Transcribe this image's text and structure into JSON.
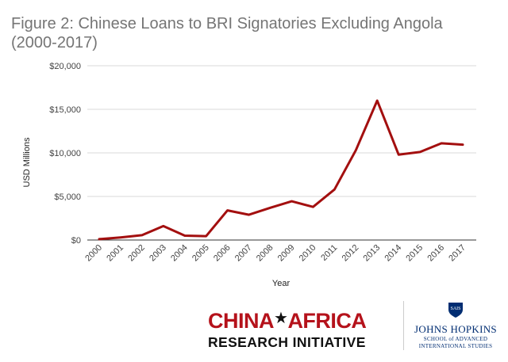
{
  "title": "Figure 2: Chinese Loans to BRI Signatories Excluding Angola (2000-2017)",
  "chart_data": {
    "type": "line",
    "title": "Figure 2: Chinese Loans to BRI Signatories Excluding Angola (2000-2017)",
    "xlabel": "Year",
    "ylabel": "USD Millions",
    "ylim": [
      0,
      20000
    ],
    "yticks": [
      0,
      5000,
      10000,
      15000,
      20000
    ],
    "ytick_labels": [
      "$0",
      "$5,000",
      "$10,000",
      "$15,000",
      "$20,000"
    ],
    "grid": true,
    "x": [
      "2000",
      "2001",
      "2002",
      "2003",
      "2004",
      "2005",
      "2006",
      "2007",
      "2008",
      "2009",
      "2010",
      "2011",
      "2012",
      "2013",
      "2014",
      "2015",
      "2016",
      "2017"
    ],
    "series": [
      {
        "values": [
          100,
          300,
          550,
          1600,
          500,
          450,
          3400,
          2900,
          3700,
          4450,
          3800,
          5800,
          10300,
          16000,
          9800,
          10100,
          11100,
          10950
        ],
        "color": "#a30f0f"
      }
    ]
  },
  "logos": {
    "cari_line1": "CHINA",
    "cari_star": "★",
    "cari_line1b": "AFRICA",
    "cari_line2": "RESEARCH INITIATIVE",
    "jhu_shield": "SAIS",
    "jhu_name": "JOHNS HOPKINS",
    "jhu_sub1": "SCHOOL of ADVANCED",
    "jhu_sub2": "INTERNATIONAL STUDIES"
  }
}
